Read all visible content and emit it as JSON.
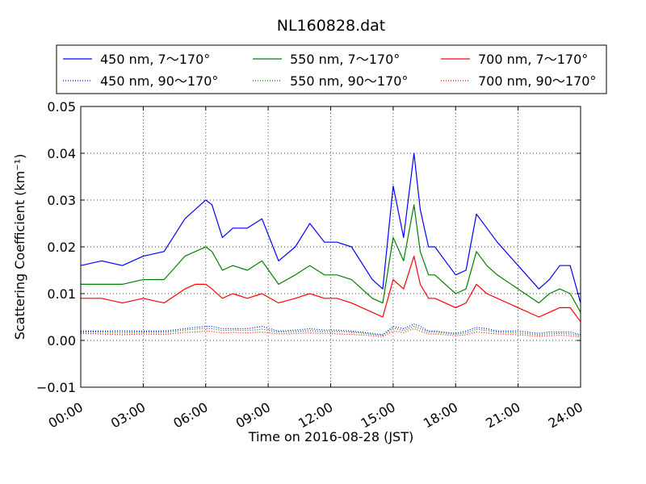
{
  "chart_data": {
    "type": "line",
    "title": "NL160828.dat",
    "xlabel": "Time on 2016-08-28 (JST)",
    "ylabel": "Scattering Coefficient (km⁻¹)",
    "x_unit": "hours",
    "xlim": [
      0,
      24
    ],
    "ylim": [
      -0.01,
      0.05
    ],
    "xticks": [
      0,
      3,
      6,
      9,
      12,
      15,
      18,
      21,
      24
    ],
    "xtick_labels": [
      "00:00",
      "03:00",
      "06:00",
      "09:00",
      "12:00",
      "15:00",
      "18:00",
      "21:00",
      "24:00"
    ],
    "yticks": [
      -0.01,
      0.0,
      0.01,
      0.02,
      0.03,
      0.04,
      0.05
    ],
    "ytick_labels": [
      "−0.01",
      "0.00",
      "0.01",
      "0.02",
      "0.03",
      "0.04",
      "0.05"
    ],
    "grid": true,
    "legend_position": "above plot, three columns",
    "x": [
      0,
      1,
      2,
      3,
      4,
      5,
      5.5,
      6,
      6.3,
      6.8,
      7.3,
      8,
      8.7,
      9.5,
      10.3,
      11,
      11.7,
      12.3,
      13,
      14,
      14.5,
      15,
      15.5,
      16,
      16.3,
      16.7,
      17,
      18,
      18.5,
      19,
      19.5,
      20,
      21,
      22,
      22.5,
      23,
      23.5,
      24
    ],
    "series": [
      {
        "name": "450 nm, 7～170°",
        "color": "#0000ff",
        "style": "solid",
        "values": [
          0.016,
          0.017,
          0.016,
          0.018,
          0.019,
          0.026,
          0.028,
          0.03,
          0.029,
          0.022,
          0.024,
          0.024,
          0.026,
          0.017,
          0.02,
          0.025,
          0.021,
          0.021,
          0.02,
          0.013,
          0.011,
          0.033,
          0.022,
          0.04,
          0.028,
          0.02,
          0.02,
          0.014,
          0.015,
          0.027,
          0.024,
          0.021,
          0.016,
          0.011,
          0.013,
          0.016,
          0.016,
          0.008
        ]
      },
      {
        "name": "550 nm, 7～170°",
        "color": "#008000",
        "style": "solid",
        "values": [
          0.012,
          0.012,
          0.012,
          0.013,
          0.013,
          0.018,
          0.019,
          0.02,
          0.019,
          0.015,
          0.016,
          0.015,
          0.017,
          0.012,
          0.014,
          0.016,
          0.014,
          0.014,
          0.013,
          0.009,
          0.008,
          0.022,
          0.017,
          0.029,
          0.019,
          0.014,
          0.014,
          0.01,
          0.011,
          0.019,
          0.016,
          0.014,
          0.011,
          0.008,
          0.01,
          0.011,
          0.01,
          0.006
        ]
      },
      {
        "name": "700 nm, 7～170°",
        "color": "#ff0000",
        "style": "solid",
        "values": [
          0.009,
          0.009,
          0.008,
          0.009,
          0.008,
          0.011,
          0.012,
          0.012,
          0.011,
          0.009,
          0.01,
          0.009,
          0.01,
          0.008,
          0.009,
          0.01,
          0.009,
          0.009,
          0.008,
          0.006,
          0.005,
          0.013,
          0.011,
          0.018,
          0.012,
          0.009,
          0.009,
          0.007,
          0.008,
          0.012,
          0.01,
          0.009,
          0.007,
          0.005,
          0.006,
          0.007,
          0.007,
          0.004
        ]
      },
      {
        "name": "450 nm, 90～170°",
        "color": "#0000ff",
        "style": "dotted",
        "values": [
          0.002,
          0.002,
          0.002,
          0.002,
          0.002,
          0.0025,
          0.0028,
          0.003,
          0.003,
          0.0025,
          0.0025,
          0.0025,
          0.003,
          0.002,
          0.0022,
          0.0025,
          0.0022,
          0.0022,
          0.002,
          0.0015,
          0.0012,
          0.003,
          0.0025,
          0.0035,
          0.003,
          0.002,
          0.002,
          0.0015,
          0.002,
          0.0028,
          0.0025,
          0.002,
          0.002,
          0.0015,
          0.0018,
          0.0018,
          0.0018,
          0.0012
        ]
      },
      {
        "name": "550 nm, 90～170°",
        "color": "#008000",
        "style": "dotted",
        "values": [
          0.0018,
          0.0018,
          0.0016,
          0.0018,
          0.0017,
          0.0022,
          0.0024,
          0.0026,
          0.0025,
          0.0021,
          0.0022,
          0.0021,
          0.0024,
          0.0018,
          0.0019,
          0.0021,
          0.0019,
          0.0019,
          0.0018,
          0.0013,
          0.0011,
          0.0026,
          0.0021,
          0.003,
          0.0025,
          0.0018,
          0.0018,
          0.0013,
          0.0016,
          0.0024,
          0.0021,
          0.0018,
          0.0016,
          0.0012,
          0.0014,
          0.0015,
          0.0014,
          0.001
        ]
      },
      {
        "name": "700 nm, 90～170°",
        "color": "#ff0000",
        "style": "dotted",
        "values": [
          0.0015,
          0.0014,
          0.0012,
          0.0014,
          0.0013,
          0.0017,
          0.0018,
          0.002,
          0.0019,
          0.0016,
          0.0017,
          0.0016,
          0.0018,
          0.0014,
          0.0015,
          0.0016,
          0.0015,
          0.0014,
          0.0013,
          0.001,
          0.0008,
          0.002,
          0.0017,
          0.0025,
          0.002,
          0.0014,
          0.0014,
          0.001,
          0.0012,
          0.0018,
          0.0016,
          0.0014,
          0.0012,
          0.0009,
          0.001,
          0.0011,
          0.001,
          0.0007
        ]
      }
    ]
  }
}
